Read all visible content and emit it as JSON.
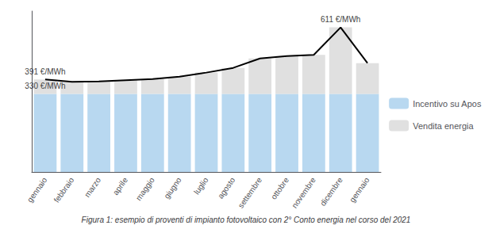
{
  "chart_data": {
    "type": "bar",
    "title": "Figura 1: esempio di proventi di impianto fotovoltaico con 2° Conto energia nel corso del 2021",
    "categories": [
      "gennaio",
      "febbraio",
      "marzo",
      "aprile",
      "maggio",
      "giugno",
      "luglio",
      "agosto",
      "settembre",
      "ottobre",
      "novembre",
      "dicembre",
      "gennaio"
    ],
    "stacked": true,
    "series": [
      {
        "name": "Incentivo su Apos",
        "type": "bar",
        "color": "#b8d8f0",
        "values": [
          330,
          330,
          330,
          330,
          330,
          330,
          330,
          330,
          330,
          330,
          330,
          330,
          330
        ]
      },
      {
        "name": "Vendita energia",
        "type": "bar",
        "color": "#e0e0e0",
        "values": [
          61,
          51,
          53,
          58,
          63,
          73,
          90,
          110,
          150,
          160,
          165,
          281,
          130
        ]
      },
      {
        "type": "line",
        "color": "#000000",
        "values": [
          391,
          381,
          383,
          388,
          393,
          403,
          420,
          440,
          480,
          490,
          495,
          611,
          460
        ]
      }
    ],
    "annotations": [
      {
        "text": "391 €/MWh",
        "value": 391
      },
      {
        "text": "330 €/MWh",
        "value": 330
      },
      {
        "text": "611 €/MWh",
        "value": 611
      }
    ],
    "ylim": [
      0,
      680
    ],
    "tick_labels": "x",
    "grid": false,
    "legend": "right"
  }
}
